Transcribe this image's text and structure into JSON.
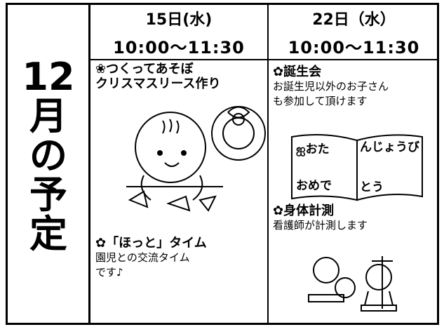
{
  "side_title": [
    "12",
    "月",
    "の",
    "予",
    "定"
  ],
  "columns": [
    {
      "date": "15日(水)",
      "time": "10:00〜11:30",
      "items": [
        {
          "title": [
            "❀つくってあそぼ",
            "クリスマスリース作り"
          ],
          "body": []
        },
        {
          "title": [
            "✿「ほっと」タイム"
          ],
          "body": [
            "園児との交流タイム",
            "です♪"
          ]
        }
      ]
    },
    {
      "date": "22日（水）",
      "time": "10:00〜11:30",
      "items": [
        {
          "title": [
            "✿誕生会"
          ],
          "body": [
            "お誕生児以外のお子さん",
            "も参加して頂けます"
          ]
        },
        {
          "title": [
            "✿身体計測"
          ],
          "body": [
            "看護師が計測します"
          ]
        }
      ]
    }
  ],
  "book": {
    "left": [
      "ஐおた",
      "おめで"
    ],
    "right": [
      "んじょうび",
      "とう"
    ]
  }
}
